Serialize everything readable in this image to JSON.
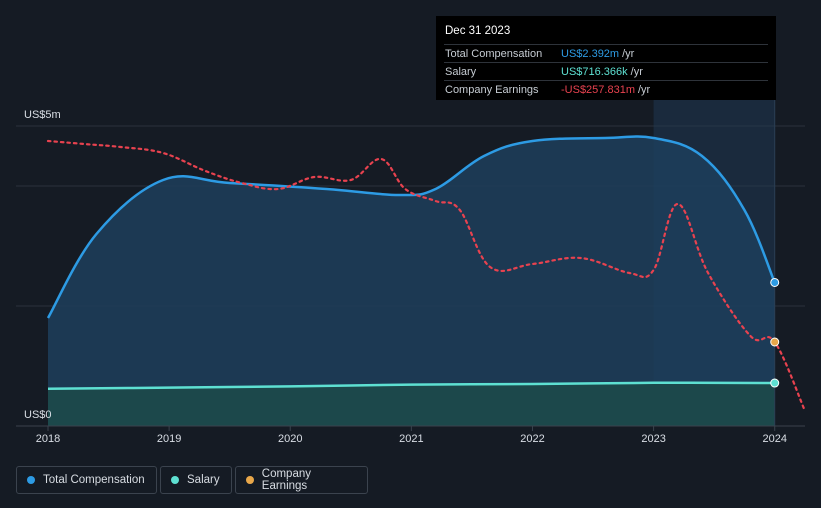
{
  "tooltip": {
    "date": "Dec 31 2023",
    "rows": [
      {
        "label": "Total Compensation",
        "value": "US$2.392m",
        "unit": "/yr",
        "color": "#2d9be4"
      },
      {
        "label": "Salary",
        "value": "US$716.366k",
        "unit": "/yr",
        "color": "#5ee0d2"
      },
      {
        "label": "Company Earnings",
        "value": "-US$257.831m",
        "unit": "/yr",
        "color": "#e8424f"
      }
    ]
  },
  "legend": [
    {
      "label": "Total Compensation",
      "color": "#2d9be4"
    },
    {
      "label": "Salary",
      "color": "#5ee0d2"
    },
    {
      "label": "Company Earnings",
      "color": "#e8a74a"
    }
  ],
  "chart_data": {
    "type": "line",
    "title": "",
    "xlabel": "",
    "ylabel": "",
    "y_axis_labels": [
      "US$5m",
      "US$0"
    ],
    "ylim": [
      0,
      5
    ],
    "xlim": [
      2018.0,
      2024.25
    ],
    "x_ticks": [
      "2018",
      "2019",
      "2020",
      "2021",
      "2022",
      "2023",
      "2024"
    ],
    "x_tick_values": [
      2018,
      2019,
      2020,
      2021,
      2022,
      2023,
      2024
    ],
    "highlight_from": 2023.0,
    "series": [
      {
        "name": "Total Compensation",
        "unit": "US$m",
        "color": "#2d9be4",
        "x": [
          2018.0,
          2018.4,
          2018.95,
          2019.5,
          2020.3,
          2020.9,
          2021.2,
          2021.6,
          2022.0,
          2022.6,
          2023.0,
          2023.4,
          2023.75,
          2024.0
        ],
        "values": [
          1.8,
          3.2,
          4.1,
          4.05,
          3.95,
          3.85,
          3.95,
          4.5,
          4.75,
          4.8,
          4.8,
          4.5,
          3.6,
          2.392
        ]
      },
      {
        "name": "Salary",
        "unit": "US$m",
        "color": "#5ee0d2",
        "x": [
          2018.0,
          2019.0,
          2020.0,
          2021.0,
          2022.0,
          2023.0,
          2024.0
        ],
        "values": [
          0.62,
          0.64,
          0.66,
          0.69,
          0.7,
          0.72,
          0.716366
        ]
      },
      {
        "name": "Company Earnings",
        "unit": "scaled",
        "color": "#e8424f",
        "marker_color": "#e8a74a",
        "x": [
          2018.0,
          2018.3,
          2018.6,
          2018.95,
          2019.3,
          2019.6,
          2019.9,
          2020.2,
          2020.5,
          2020.75,
          2020.95,
          2021.2,
          2021.4,
          2021.65,
          2022.0,
          2022.4,
          2022.8,
          2023.0,
          2023.2,
          2023.45,
          2023.8,
          2024.0,
          2024.25
        ],
        "values": [
          4.75,
          4.7,
          4.65,
          4.55,
          4.25,
          4.05,
          3.95,
          4.15,
          4.1,
          4.45,
          3.95,
          3.75,
          3.6,
          2.65,
          2.7,
          2.8,
          2.55,
          2.6,
          3.7,
          2.55,
          1.5,
          1.4,
          0.25
        ]
      }
    ]
  }
}
